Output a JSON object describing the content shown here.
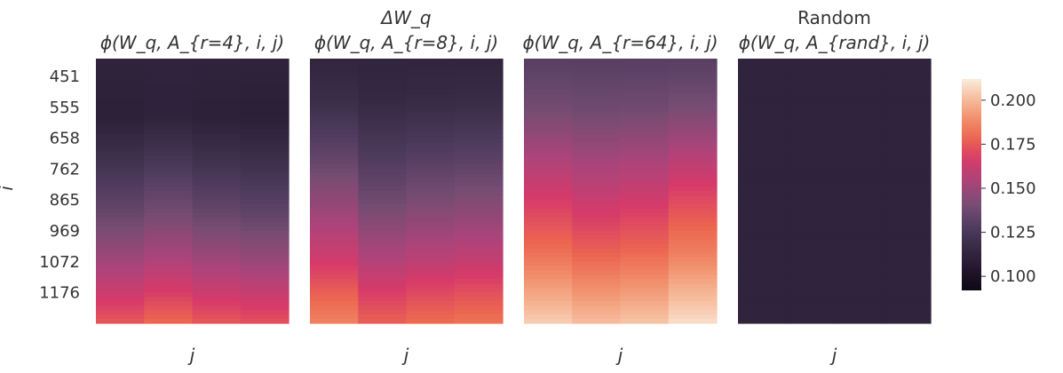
{
  "chart_data": {
    "type": "heatmap",
    "ylabel": "i",
    "xlabel": "j",
    "yticks": [
      "451",
      "555",
      "658",
      "762",
      "865",
      "969",
      "1072",
      "1176"
    ],
    "colormap": {
      "name": "rocket",
      "range": [
        0.092,
        0.212
      ],
      "ticks": [
        "0.100",
        "0.125",
        "0.150",
        "0.175",
        "0.200"
      ],
      "tick_values": [
        0.1,
        0.125,
        0.15,
        0.175,
        0.2
      ]
    },
    "panels": [
      {
        "title_top": "",
        "title_main": "ϕ(W_q, A_{r=4}, i, j)",
        "columns": 4,
        "column_offsets": [
          0.0,
          0.004,
          0.0,
          -0.002
        ],
        "row_profile": [
          [
            0.0,
            0.112
          ],
          [
            0.22,
            0.11
          ],
          [
            0.4,
            0.122
          ],
          [
            0.58,
            0.135
          ],
          [
            0.75,
            0.15
          ],
          [
            0.88,
            0.163
          ],
          [
            1.0,
            0.175
          ]
        ]
      },
      {
        "title_top": "ΔW_q",
        "title_main": "ϕ(W_q, A_{r=8}, i, j)",
        "columns": 4,
        "column_offsets": [
          0.006,
          -0.003,
          0.0,
          0.002
        ],
        "row_profile": [
          [
            0.0,
            0.113
          ],
          [
            0.15,
            0.116
          ],
          [
            0.35,
            0.128
          ],
          [
            0.55,
            0.142
          ],
          [
            0.75,
            0.158
          ],
          [
            0.9,
            0.172
          ],
          [
            1.0,
            0.18
          ]
        ]
      },
      {
        "title_top": "",
        "title_main": "ϕ(W_q, A_{r=64}, i, j)",
        "columns": 4,
        "column_offsets": [
          0.0,
          -0.004,
          -0.002,
          0.004
        ],
        "row_profile": [
          [
            0.0,
            0.13
          ],
          [
            0.2,
            0.14
          ],
          [
            0.38,
            0.155
          ],
          [
            0.55,
            0.168
          ],
          [
            0.72,
            0.18
          ],
          [
            0.85,
            0.192
          ],
          [
            1.0,
            0.205
          ]
        ]
      },
      {
        "title_top": "Random",
        "title_main": "ϕ(W_q, A_{rand}, i, j)",
        "columns": 4,
        "column_offsets": [
          0.0,
          0.0,
          0.0,
          0.0
        ],
        "row_profile": [
          [
            0.0,
            0.112
          ],
          [
            1.0,
            0.112
          ]
        ]
      }
    ]
  }
}
